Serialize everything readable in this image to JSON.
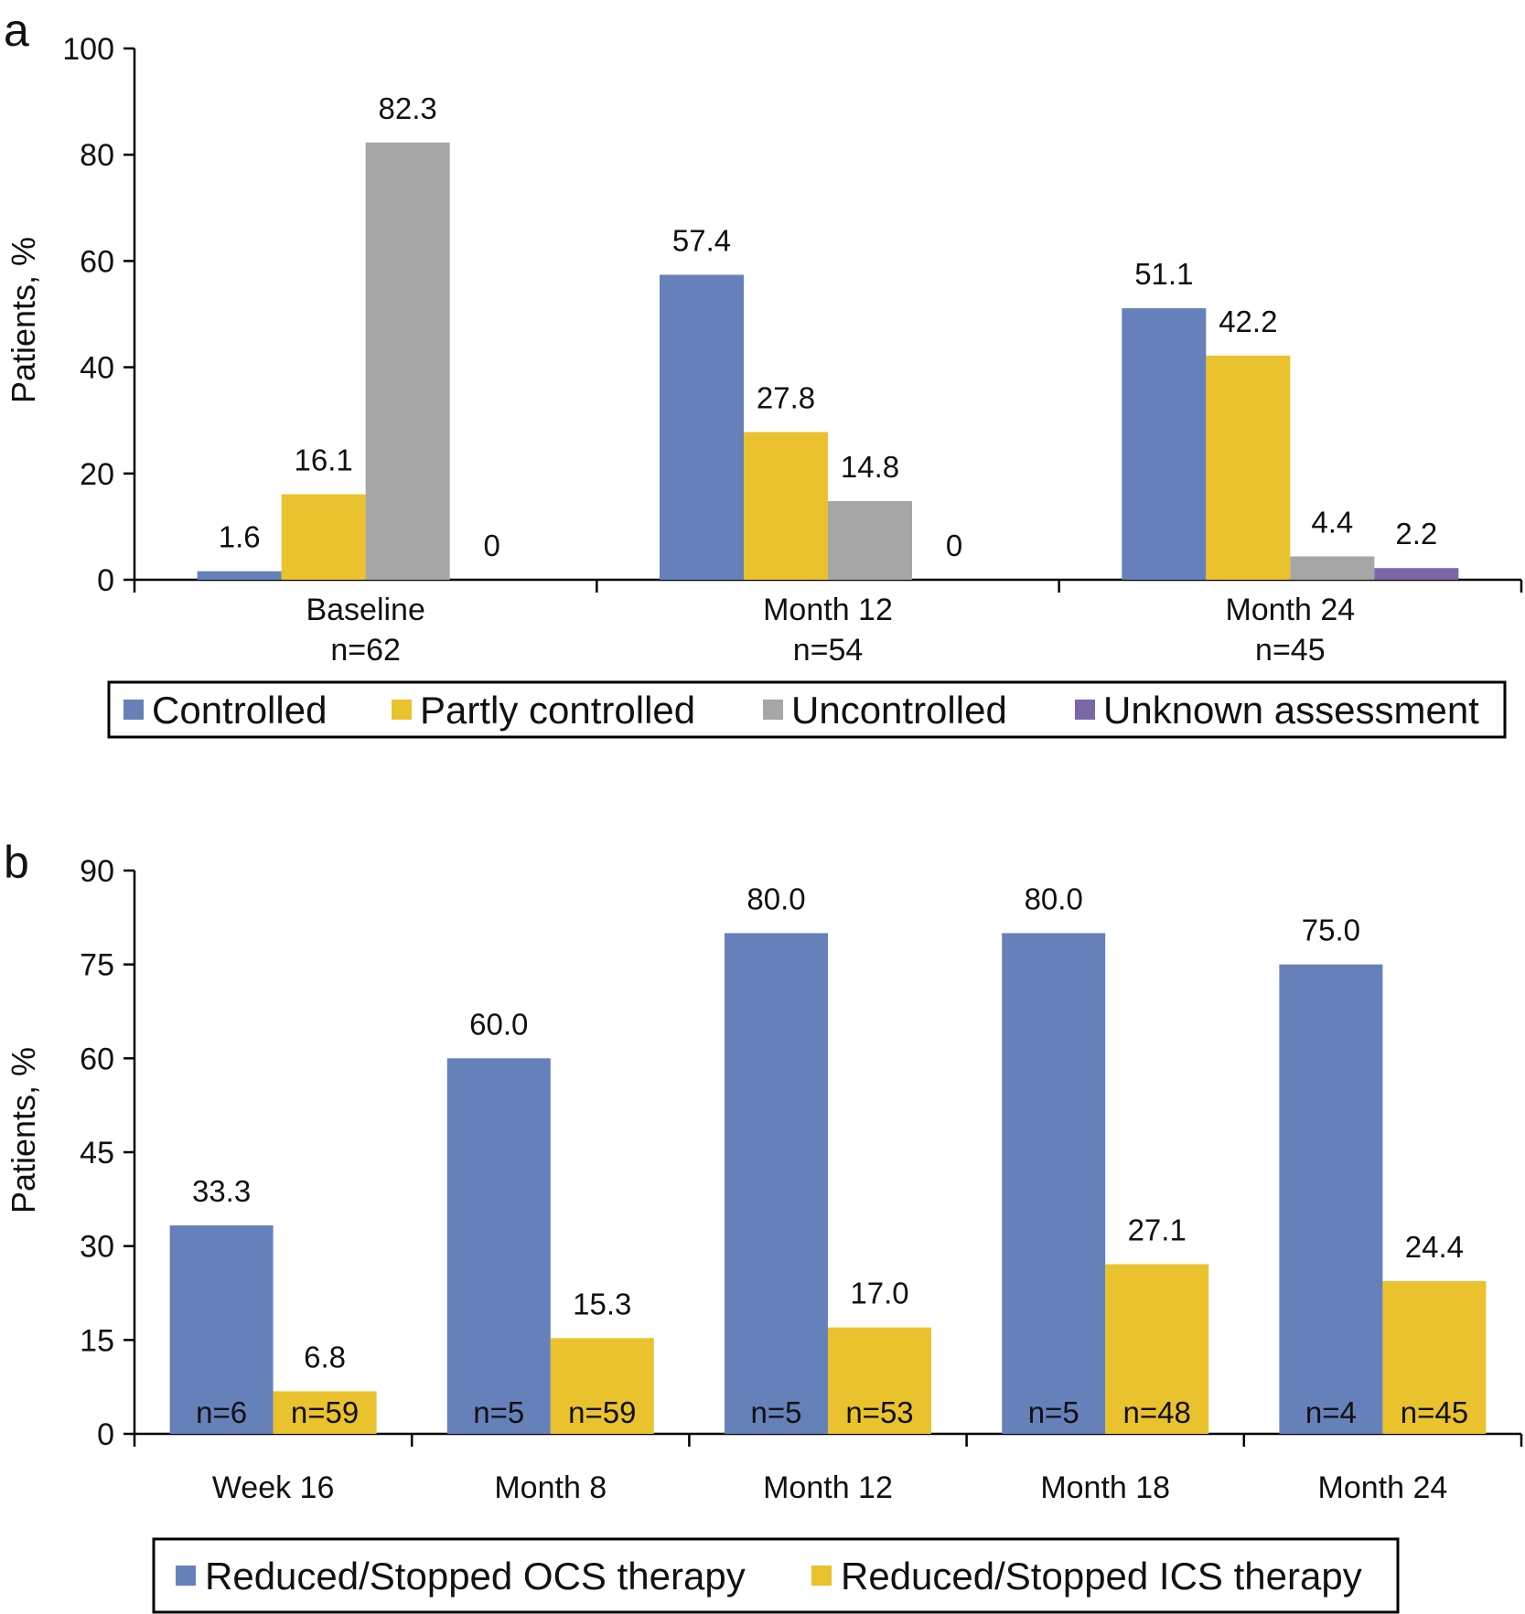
{
  "colors": {
    "blue": "#6680BA",
    "yellow": "#E9C22E",
    "gray": "#A6A6A6",
    "purple": "#7C67A6"
  },
  "chart_data": [
    {
      "panel": "a",
      "type": "bar",
      "ylabel": "Patients, %",
      "ylim": [
        0,
        100
      ],
      "yticks": [
        0,
        20,
        40,
        60,
        80,
        100
      ],
      "categories": [
        {
          "label": "Baseline",
          "sub": "n=62"
        },
        {
          "label": "Month 12",
          "sub": "n=54"
        },
        {
          "label": "Month 24",
          "sub": "n=45"
        }
      ],
      "series": [
        {
          "name": "Controlled",
          "color": "#6680BA",
          "values": [
            1.6,
            57.4,
            51.1
          ],
          "labels": [
            "1.6",
            "57.4",
            "51.1"
          ]
        },
        {
          "name": "Partly controlled",
          "color": "#E9C22E",
          "values": [
            16.1,
            27.8,
            42.2
          ],
          "labels": [
            "16.1",
            "27.8",
            "42.2"
          ]
        },
        {
          "name": "Uncontrolled",
          "color": "#A6A6A6",
          "values": [
            82.3,
            14.8,
            4.4
          ],
          "labels": [
            "82.3",
            "14.8",
            "4.4"
          ]
        },
        {
          "name": "Unknown assessment",
          "color": "#7C67A6",
          "values": [
            0,
            0,
            2.2
          ],
          "labels": [
            "0",
            "0",
            "2.2"
          ]
        }
      ],
      "legend_position": "bottom"
    },
    {
      "panel": "b",
      "type": "bar",
      "ylabel": "Patients, %",
      "ylim": [
        0,
        90
      ],
      "yticks": [
        0,
        15,
        30,
        45,
        60,
        75,
        90
      ],
      "categories": [
        {
          "label": "Week 16"
        },
        {
          "label": "Month 8"
        },
        {
          "label": "Month 12"
        },
        {
          "label": "Month 18"
        },
        {
          "label": "Month 24"
        }
      ],
      "series": [
        {
          "name": "Reduced/Stopped OCS therapy",
          "color": "#6680BA",
          "values": [
            33.3,
            60.0,
            80.0,
            80.0,
            75.0
          ],
          "labels": [
            "33.3",
            "60.0",
            "80.0",
            "80.0",
            "75.0"
          ],
          "n": [
            "n=6",
            "n=5",
            "n=5",
            "n=5",
            "n=4"
          ]
        },
        {
          "name": "Reduced/Stopped ICS therapy",
          "color": "#E9C22E",
          "values": [
            6.8,
            15.3,
            17.0,
            27.1,
            24.4
          ],
          "labels": [
            "6.8",
            "15.3",
            "17.0",
            "27.1",
            "24.4"
          ],
          "n": [
            "n=59",
            "n=59",
            "n=53",
            "n=48",
            "n=45"
          ]
        }
      ],
      "legend_position": "bottom"
    }
  ]
}
